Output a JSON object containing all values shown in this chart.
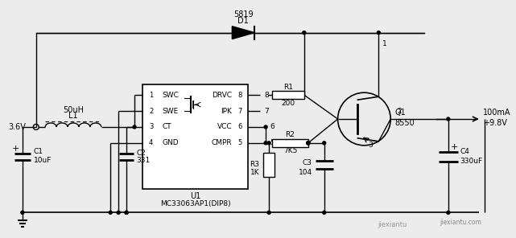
{
  "bg_color": "#ececec",
  "line_color": "#000000",
  "components": {
    "input_voltage": "3.6V",
    "inductor_label": "L1",
    "inductor_value": "50uH",
    "cap_c1_label": "C1",
    "cap_c1_value": "10uF",
    "cap_c2_label": "C2",
    "cap_c2_value": "331",
    "ic_label": "U1",
    "ic_name": "MC33063AP1(DIP8)",
    "pins_left": [
      "SWC",
      "SWE",
      "CT",
      "GND"
    ],
    "pins_right": [
      "DRVC",
      "IPK",
      "VCC",
      "CMPR"
    ],
    "pin_nums_left": [
      "1",
      "2",
      "3",
      "4"
    ],
    "pin_nums_right": [
      "8",
      "7",
      "6",
      "5"
    ],
    "diode_label": "D1",
    "diode_value": "5819",
    "r1_label": "R1",
    "r1_value": "200",
    "r2_label": "R2",
    "r2_value": "7K5",
    "r3_label": "R3",
    "r3_value": "1K",
    "cap_c3_label": "C3",
    "cap_c3_value": "104",
    "cap_c4_label": "C4",
    "cap_c4_value": "330uF",
    "transistor_label": "Q1",
    "transistor_value": "8550",
    "output_voltage": "+9.8V",
    "output_current": "100mA",
    "node1": "1",
    "node2": "2",
    "node3": "3"
  }
}
